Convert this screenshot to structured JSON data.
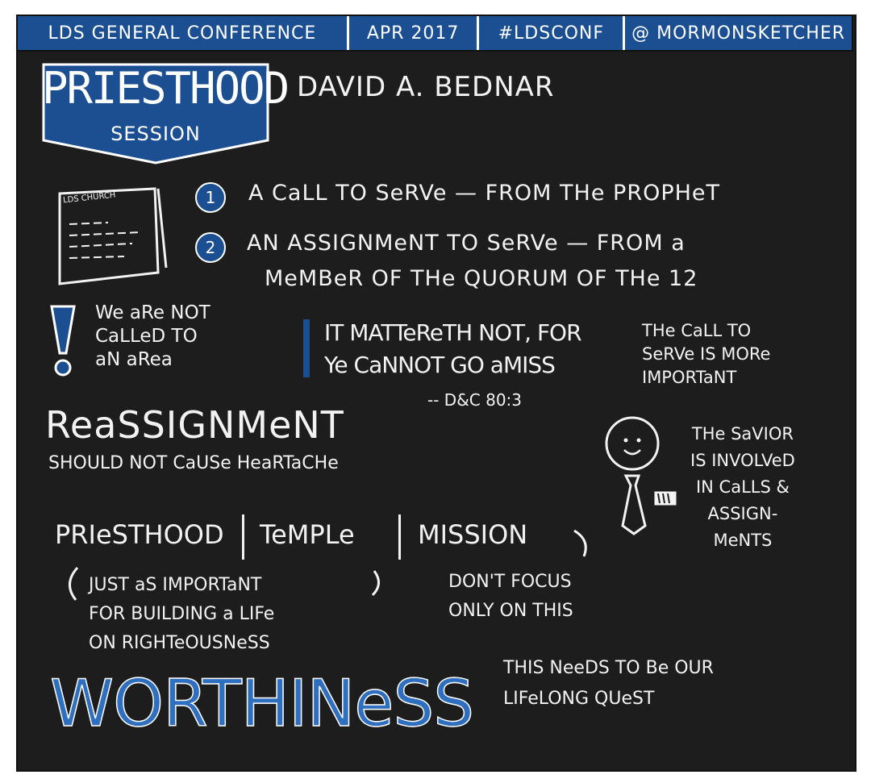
{
  "header": {
    "event": "LDS GENERAL CONFERENCE",
    "date": "APR 2017",
    "hashtag": "#LDSCONF",
    "handle": "@ MORMONSKETCHER"
  },
  "banner": {
    "title": "PRIESTHOOD",
    "subtitle": "SESSION"
  },
  "speaker": "DAVID A. BEDNAR",
  "paper_label": "LDS CHURCH",
  "points": [
    {
      "num": "1",
      "text": "A CaLL TO SeRVe  —  FROM THe PROPHeT"
    },
    {
      "num": "2",
      "line1": "AN ASSIGNMeNT  TO  SeRVe  — FROM a",
      "line2": "MeMBeR  OF  THe  QUORUM  OF THe 12"
    }
  ],
  "note_area": [
    "We aRe NOT",
    "CaLLeD TO",
    "aN aRea"
  ],
  "quote": {
    "line1": "IT MATTeReTH NOT, FOR",
    "line2": "Ye CaNNOT GO aMISS",
    "ref": "-- D&C 80:3"
  },
  "call_note": [
    "THe CaLL TO",
    "SeRVe IS MORe",
    "IMPORTaNT"
  ],
  "reassign": {
    "title": "ReaSSIGNMeNT",
    "sub": "SHOULD NOT CaUSe HeaRTaCHe"
  },
  "savior_note": [
    "THe SaVIOR",
    "IS INVOLVeD",
    "IN CaLLS &",
    "ASSIGN-",
    "MeNTS"
  ],
  "triad": [
    "PRIeSTHOOD",
    "TeMPLe",
    "MISSION"
  ],
  "triad_note": [
    "JUST aS IMPORTaNT",
    "FOR BUILDING a LIFe",
    "ON RIGHTeOUSNeSS"
  ],
  "focus_note": [
    "DON'T FOCUS",
    "ONLY ON THIS"
  ],
  "worthiness": {
    "title": "WORTHINeSS",
    "note": [
      "THIS NeeDS TO Be OUR",
      "LIFeLONG QUeST"
    ]
  },
  "colors": {
    "background": "#1d1d1d",
    "accent_blue": "#1b4f91",
    "bright_blue": "#2f6fbf",
    "chalk": "#f2f2f2"
  }
}
